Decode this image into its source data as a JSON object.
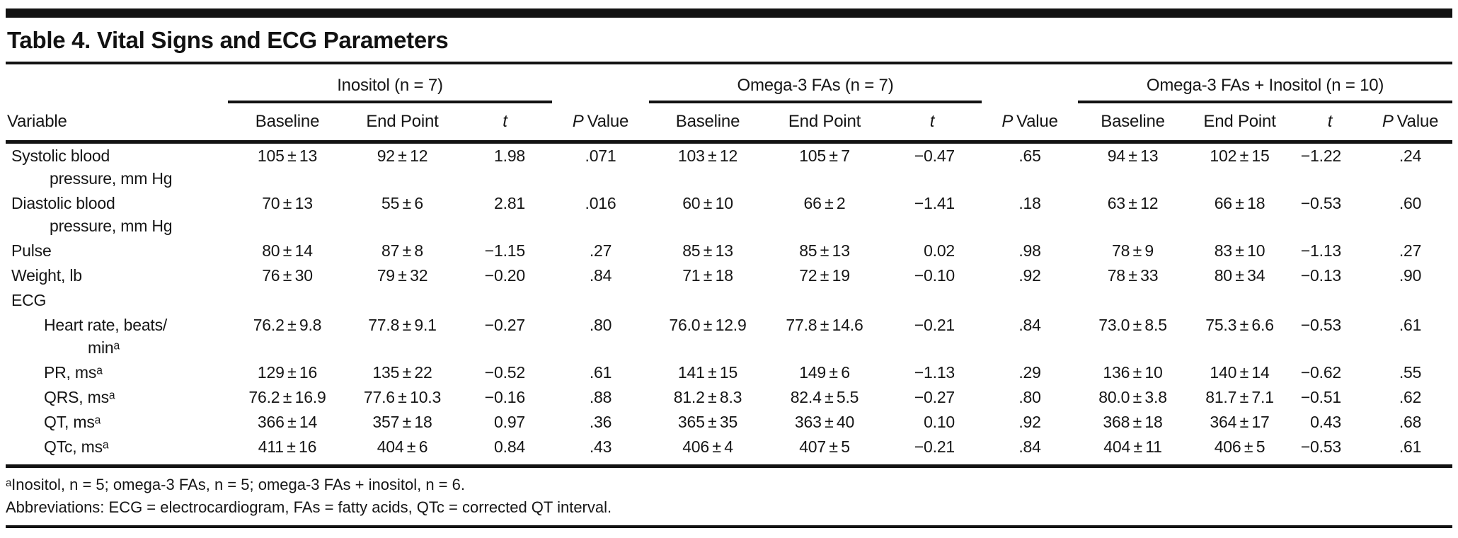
{
  "page": {
    "title": "Table 4. Vital Signs and ECG Parameters"
  },
  "table": {
    "column_groups": [
      {
        "label": "Inositol (n = 7)",
        "span": 3
      },
      {
        "label": "Omega-3 FAs (n = 7)",
        "span": 3
      },
      {
        "label": "Omega-3 FAs + Inositol (n = 10)",
        "span": 4
      }
    ],
    "headers": {
      "variable": "Variable",
      "baseline": "Baseline",
      "end_point": "End Point",
      "t": "t",
      "p": "P",
      "p_value_suffix": "Value"
    },
    "rows": [
      {
        "variable": "Systolic blood\npressure, mm Hg",
        "indent": 0,
        "section": false,
        "values": [
          "105 ± 13",
          "92 ± 12",
          "1.98",
          ".071",
          "103 ± 12",
          "105 ± 7",
          "−0.47",
          ".65",
          "94 ± 13",
          "102 ± 15",
          "−1.22",
          ".24"
        ]
      },
      {
        "variable": "Diastolic blood\npressure, mm Hg",
        "indent": 0,
        "section": false,
        "values": [
          "70 ± 13",
          "55 ± 6",
          "2.81",
          ".016",
          "60 ± 10",
          "66 ± 2",
          "−1.41",
          ".18",
          "63 ± 12",
          "66 ± 18",
          "−0.53",
          ".60"
        ]
      },
      {
        "variable": "Pulse",
        "indent": 0,
        "section": false,
        "values": [
          "80 ± 14",
          "87 ± 8",
          "−1.15",
          ".27",
          "85 ± 13",
          "85 ± 13",
          "0.02",
          ".98",
          "78 ± 9",
          "83 ± 10",
          "−1.13",
          ".27"
        ]
      },
      {
        "variable": "Weight, lb",
        "indent": 0,
        "section": false,
        "values": [
          "76 ± 30",
          "79 ± 32",
          "−0.20",
          ".84",
          "71 ± 18",
          "72 ± 19",
          "−0.10",
          ".92",
          "78 ± 33",
          "80 ± 34",
          "−0.13",
          ".90"
        ]
      },
      {
        "variable": "ECG",
        "indent": 0,
        "section": true,
        "values": [
          "",
          "",
          "",
          "",
          "",
          "",
          "",
          "",
          "",
          "",
          "",
          ""
        ]
      },
      {
        "variable": "Heart rate, beats/\nminᵃ",
        "indent": 1,
        "section": false,
        "values": [
          "76.2 ± 9.8",
          "77.8 ± 9.1",
          "−0.27",
          ".80",
          "76.0 ± 12.9",
          "77.8 ± 14.6",
          "−0.21",
          ".84",
          "73.0 ± 8.5",
          "75.3 ± 6.6",
          "−0.53",
          ".61"
        ]
      },
      {
        "variable": "PR, msᵃ",
        "indent": 1,
        "section": false,
        "values": [
          "129 ± 16",
          "135 ± 22",
          "−0.52",
          ".61",
          "141 ± 15",
          "149 ± 6",
          "−1.13",
          ".29",
          "136 ± 10",
          "140 ± 14",
          "−0.62",
          ".55"
        ]
      },
      {
        "variable": "QRS, msᵃ",
        "indent": 1,
        "section": false,
        "values": [
          "76.2 ± 16.9",
          "77.6 ± 10.3",
          "−0.16",
          ".88",
          "81.2 ± 8.3",
          "82.4 ± 5.5",
          "−0.27",
          ".80",
          "80.0 ± 3.8",
          "81.7 ± 7.1",
          "−0.51",
          ".62"
        ]
      },
      {
        "variable": "QT, msᵃ",
        "indent": 1,
        "section": false,
        "values": [
          "366 ± 14",
          "357 ± 18",
          "0.97",
          ".36",
          "365 ± 35",
          "363 ± 40",
          "0.10",
          ".92",
          "368 ± 18",
          "364 ± 17",
          "0.43",
          ".68"
        ]
      },
      {
        "variable": "QTc, msᵃ",
        "indent": 1,
        "section": false,
        "values": [
          "411 ± 16",
          "404 ± 6",
          "0.84",
          ".43",
          "406 ± 4",
          "407 ± 5",
          "−0.21",
          ".84",
          "404 ± 11",
          "406 ± 5",
          "−0.53",
          ".61"
        ]
      }
    ],
    "footnotes": [
      "ᵃInositol, n = 5; omega-3 FAs, n = 5; omega-3 FAs + inositol, n = 6.",
      "Abbreviations: ECG = electrocardiogram, FAs = fatty acids, QTc = corrected QT interval."
    ]
  }
}
